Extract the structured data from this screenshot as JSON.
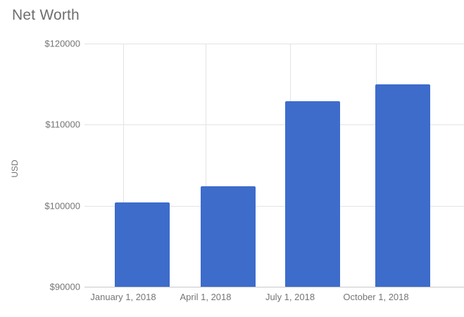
{
  "title": "Net Worth",
  "axes": {
    "y_label": "USD",
    "y_ticks": [
      {
        "label": "$120000",
        "value": 120000
      },
      {
        "label": "$110000",
        "value": 110000
      },
      {
        "label": "$100000",
        "value": 100000
      },
      {
        "label": "$90000",
        "value": 90000
      }
    ],
    "x_labels": [
      "January 1, 2018",
      "April 1, 2018",
      "July 1, 2018",
      "October 1, 2018"
    ]
  },
  "chart_data": {
    "type": "bar",
    "title": "Net Worth",
    "categories": [
      "January 1, 2018",
      "April 1, 2018",
      "July 1, 2018",
      "October 1, 2018"
    ],
    "values": [
      100400,
      102400,
      112900,
      115000
    ],
    "xlabel": "",
    "ylabel": "USD",
    "ylim": [
      90000,
      120000
    ],
    "grid": true,
    "legend_position": "none",
    "bar_color": "#3d6ccb"
  },
  "colors": {
    "background": "#ffffff",
    "bar": "#3d6ccb",
    "gridline": "#e3e3e3",
    "axis_line": "#c9c9c9",
    "text": "#757575",
    "title_text": "#6e6e6e"
  }
}
